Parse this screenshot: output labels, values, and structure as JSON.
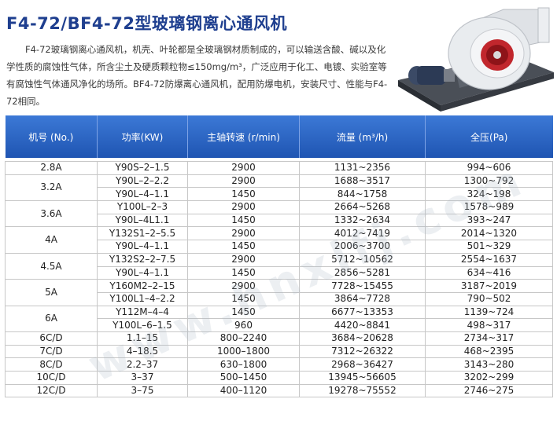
{
  "title": "F4-72/BF4-72型玻璃钢离心通风机",
  "intro": "F4-72玻璃钢离心通风机，机壳、叶轮都是全玻璃钢材质制成的，可以输送含酸、碱以及化学性质的腐蚀性气体，所含尘土及硬质颗粒物≤150mg/m³，广泛应用于化工、电镀、实验室等有腐蚀性气体通风净化的场所。BF4-72防爆离心通风机，配用防爆电机，安装尺寸、性能与F4-72相同。",
  "watermark": "www.hnxlfj.com",
  "colors": {
    "title": "#1f3f8f",
    "header": "#2a62c4"
  },
  "table": {
    "headers": [
      "机号 (No.)",
      "功率(KW)",
      "主轴转速 (r/min)",
      "流量 (m³/h)",
      "全压(Pa)"
    ],
    "groups": [
      {
        "no": "2.8A",
        "rows": [
          [
            "Y90S–2–1.5",
            "2900",
            "1131~2356",
            "994~606"
          ]
        ]
      },
      {
        "no": "3.2A",
        "rows": [
          [
            "Y90L–2–2.2",
            "2900",
            "1688~3517",
            "1300~792"
          ],
          [
            "Y90L–4–1.1",
            "1450",
            "844~1758",
            "324~198"
          ]
        ]
      },
      {
        "no": "3.6A",
        "rows": [
          [
            "Y100L–2–3",
            "2900",
            "2664~5268",
            "1578~989"
          ],
          [
            "Y90L–4L1.1",
            "1450",
            "1332~2634",
            "393~247"
          ]
        ]
      },
      {
        "no": "4A",
        "rows": [
          [
            "Y132S1–2–5.5",
            "2900",
            "4012~7419",
            "2014~1320"
          ],
          [
            "Y90L–4–1.1",
            "1450",
            "2006~3700",
            "501~329"
          ]
        ]
      },
      {
        "no": "4.5A",
        "rows": [
          [
            "Y132S2–2–7.5",
            "2900",
            "5712~10562",
            "2554~1637"
          ],
          [
            "Y90L–4–1.1",
            "1450",
            "2856~5281",
            "634~416"
          ]
        ]
      },
      {
        "no": "5A",
        "rows": [
          [
            "Y160M2–2–15",
            "2900",
            "7728~15455",
            "3187~2019"
          ],
          [
            "Y100L1–4–2.2",
            "1450",
            "3864~7728",
            "790~502"
          ]
        ]
      },
      {
        "no": "6A",
        "rows": [
          [
            "Y112M–4–4",
            "1450",
            "6677~13353",
            "1139~724"
          ],
          [
            "Y100L–6–1.5",
            "960",
            "4420~8841",
            "498~317"
          ]
        ]
      },
      {
        "no": "6C/D",
        "rows": [
          [
            "1.1–15",
            "800–2240",
            "3684~20628",
            "2734~317"
          ]
        ]
      },
      {
        "no": "7C/D",
        "rows": [
          [
            "4–18.5",
            "1000–1800",
            "7312~26322",
            "468~2395"
          ]
        ]
      },
      {
        "no": "8C/D",
        "rows": [
          [
            "2.2–37",
            "630–1800",
            "2968~36427",
            "3143~280"
          ]
        ]
      },
      {
        "no": "10C/D",
        "rows": [
          [
            "3–37",
            "500–1450",
            "13945~56605",
            "3202~299"
          ]
        ]
      },
      {
        "no": "12C/D",
        "rows": [
          [
            "3–75",
            "400–1120",
            "19278~75552",
            "2746~275"
          ]
        ]
      }
    ]
  }
}
